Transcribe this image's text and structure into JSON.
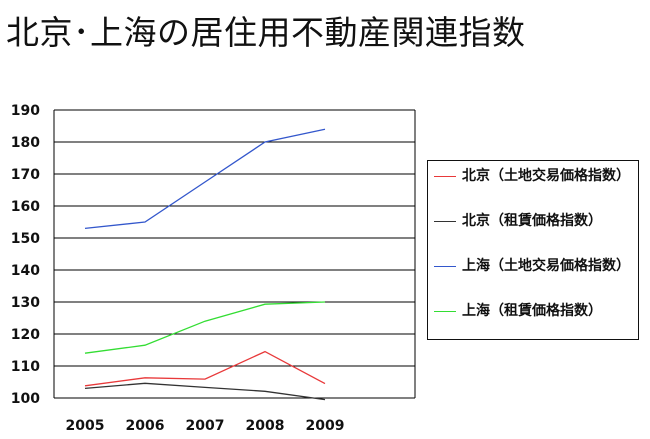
{
  "title": "北京･上海の居住用不動産関連指数",
  "chart_data": {
    "type": "line",
    "x": [
      "2005",
      "2006",
      "2007",
      "2008",
      "2009"
    ],
    "ylim": [
      100,
      190
    ],
    "yticks": [
      100,
      110,
      120,
      130,
      140,
      150,
      160,
      170,
      180,
      190
    ],
    "grid": true,
    "legend_position": "right",
    "series": [
      {
        "name": "北京（土地交易価格指数）",
        "color": "#e8393a",
        "values": [
          103.8,
          106.3,
          105.9,
          114.5,
          104.5
        ]
      },
      {
        "name": "北京（租賃価格指数）",
        "color": "#333333",
        "values": [
          103.0,
          104.6,
          103.3,
          102.1,
          99.5
        ]
      },
      {
        "name": "上海（土地交易価格指数）",
        "color": "#3357cc",
        "values": [
          153.0,
          155.0,
          167.5,
          180.0,
          184.0
        ]
      },
      {
        "name": "上海（租賃価格指数）",
        "color": "#33dd33",
        "values": [
          114.0,
          116.5,
          124.0,
          129.3,
          130.0
        ]
      }
    ]
  }
}
